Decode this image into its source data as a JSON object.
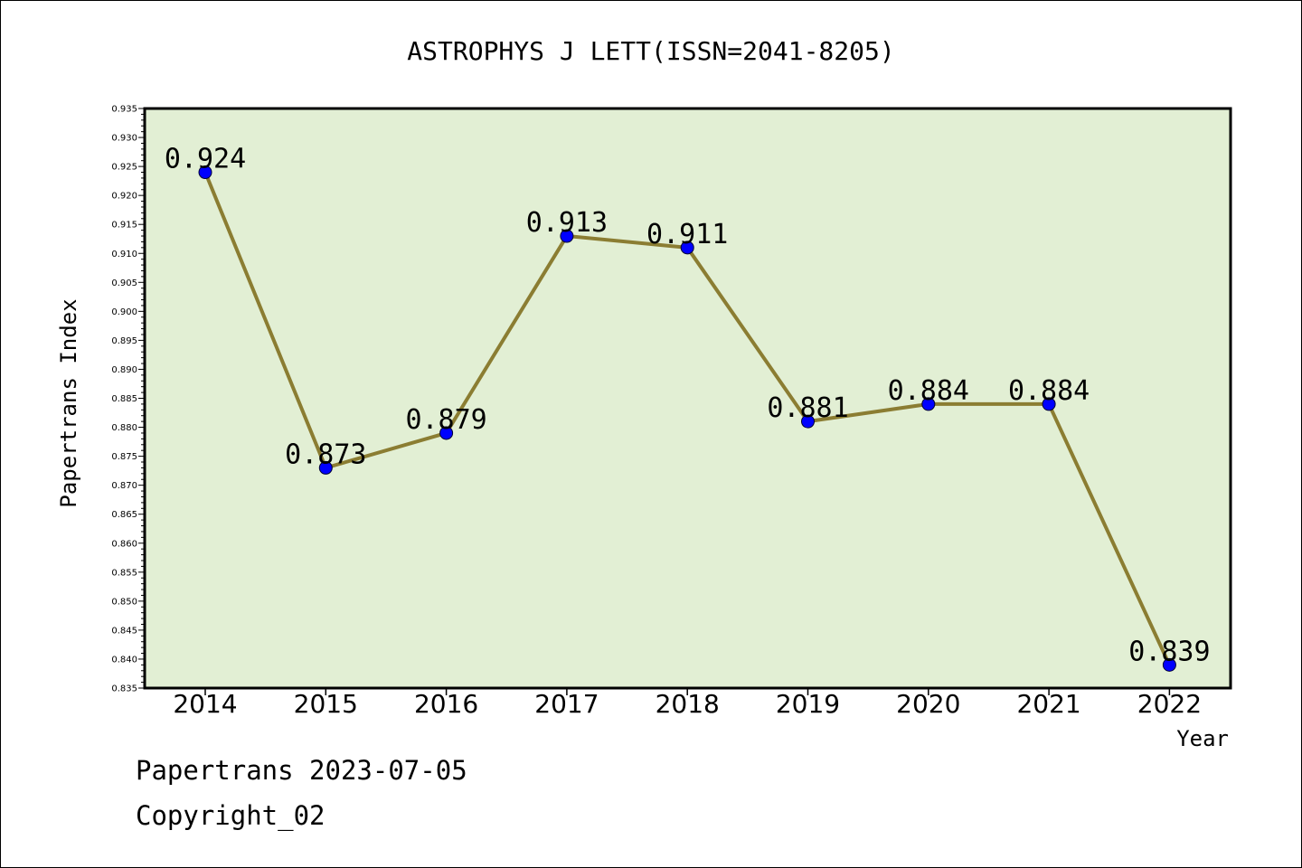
{
  "chart_data": {
    "type": "line",
    "title": "ASTROPHYS J LETT(ISSN=2041-8205)",
    "xlabel": "Year",
    "ylabel": "Papertrans Index",
    "categories": [
      "2014",
      "2015",
      "2016",
      "2017",
      "2018",
      "2019",
      "2020",
      "2021",
      "2022"
    ],
    "values": [
      0.924,
      0.873,
      0.879,
      0.913,
      0.911,
      0.881,
      0.884,
      0.884,
      0.839
    ],
    "data_labels": [
      "0.924",
      "0.873",
      "0.879",
      "0.913",
      "0.911",
      "0.881",
      "0.884",
      "0.884",
      "0.839"
    ],
    "ylim": [
      0.835,
      0.935
    ],
    "ytick_step": 0.005,
    "ytick_labels": [
      "0.835",
      "0.840",
      "0.845",
      "0.850",
      "0.855",
      "0.860",
      "0.865",
      "0.870",
      "0.875",
      "0.880",
      "0.885",
      "0.890",
      "0.895",
      "0.900",
      "0.905",
      "0.910",
      "0.915",
      "0.920",
      "0.925",
      "0.930",
      "0.935"
    ],
    "grid": false,
    "colors": {
      "line": "#8b7d32",
      "marker": "#0000ff",
      "plot_bg": "#e2efd4"
    }
  },
  "footer": {
    "date_text": "Papertrans 2023-07-05",
    "copyright_text": "Copyright_02"
  }
}
